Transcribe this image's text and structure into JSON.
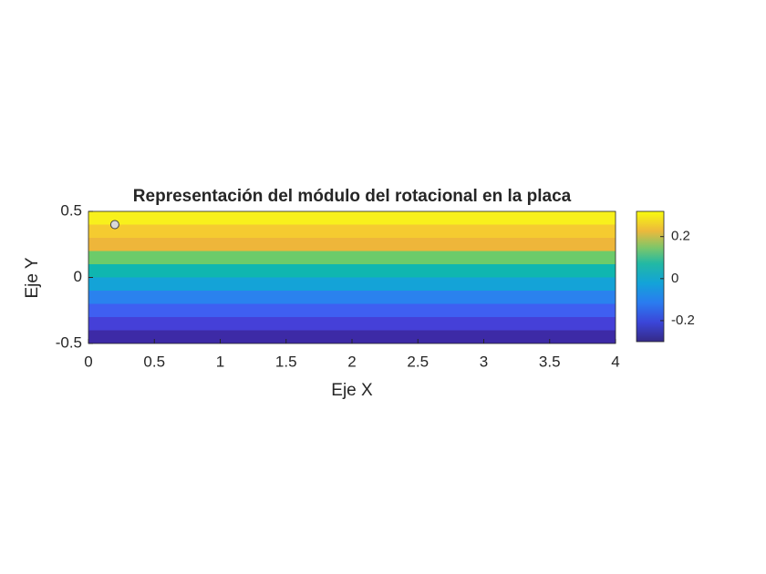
{
  "chart_data": {
    "type": "contourf",
    "title": "Representación del módulo del rotacional en la placa",
    "xlabel": "Eje X",
    "ylabel": "Eje Y",
    "xlim": [
      0,
      4
    ],
    "ylim": [
      -0.5,
      0.5
    ],
    "xticks": [
      0,
      0.5,
      1,
      1.5,
      2,
      2.5,
      3,
      3.5,
      4
    ],
    "yticks": [
      -0.5,
      0,
      0.5
    ],
    "y_edges": [
      -0.5,
      -0.4,
      -0.3,
      -0.2,
      -0.1,
      0,
      0.1,
      0.2,
      0.3,
      0.4,
      0.5
    ],
    "values": [
      -0.27,
      -0.21,
      -0.15,
      -0.09,
      -0.03,
      0.03,
      0.09,
      0.15,
      0.21,
      0.27
    ],
    "colors": [
      "#3d2aa6",
      "#4540d8",
      "#3f5ff1",
      "#2a82ee",
      "#14a3d7",
      "#0fb6b0",
      "#6ccb6a",
      "#eeb63a",
      "#f5cb30",
      "#f8f01c"
    ],
    "clim": [
      -0.3,
      0.32
    ],
    "cticks": [
      -0.2,
      0,
      0.2
    ],
    "points": {
      "x": [
        0.2
      ],
      "y": [
        0.4
      ],
      "color": "#d9d9d9"
    }
  }
}
